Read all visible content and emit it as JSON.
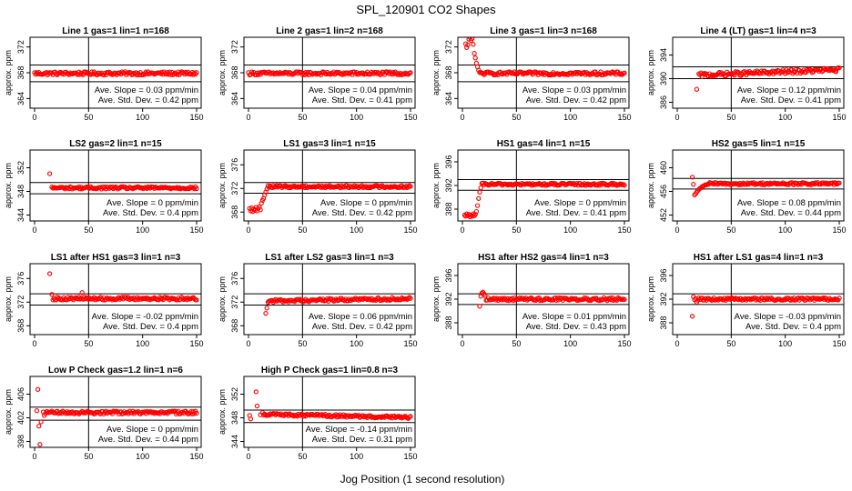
{
  "title": "SPL_120901  CO2 Shapes",
  "xlabel": "Jog Position (1 second resolution)",
  "colors": {
    "points": "#ff0000",
    "axes": "#000000",
    "background": "#ffffff"
  },
  "chart_data": [
    {
      "type": "scatter",
      "title": "Line 1 gas=1 lin=1 n=168",
      "ylabel": "approx. ppm",
      "xlim": [
        0,
        150
      ],
      "xticks": [
        0,
        50,
        100,
        150
      ],
      "ylim": [
        362.5,
        373.5
      ],
      "yticks": [
        364,
        368,
        372
      ],
      "hlines": [
        369.2,
        366.6
      ],
      "vline": 50,
      "slope_text": "Ave. Slope = 0.03 ppm/min",
      "std_text": "Ave. Std. Dev. = 0.42 ppm",
      "series": [
        {
          "x_start": 0,
          "x_end": 150,
          "level": 367.9,
          "noise": 0.25,
          "early": []
        }
      ]
    },
    {
      "type": "scatter",
      "title": "Line 2 gas=1 lin=2 n=168",
      "ylabel": "approx. ppm",
      "xlim": [
        0,
        150
      ],
      "xticks": [
        0,
        50,
        100,
        150
      ],
      "ylim": [
        362.5,
        373.5
      ],
      "yticks": [
        364,
        368,
        372
      ],
      "hlines": [
        369.2,
        366.6
      ],
      "vline": 50,
      "slope_text": "Ave. Slope = 0.04 ppm/min",
      "std_text": "Ave. Std. Dev. = 0.41 ppm",
      "series": [
        {
          "x_start": 0,
          "x_end": 150,
          "level": 367.9,
          "noise": 0.25,
          "early": []
        }
      ]
    },
    {
      "type": "scatter",
      "title": "Line 3 gas=1 lin=3 n=168",
      "ylabel": "approx. ppm",
      "xlim": [
        0,
        150
      ],
      "xticks": [
        0,
        50,
        100,
        150
      ],
      "ylim": [
        362.5,
        373.5
      ],
      "yticks": [
        364,
        368,
        372
      ],
      "hlines": [
        369.2,
        366.6
      ],
      "vline": 50,
      "slope_text": "Ave. Slope = 0.03 ppm/min",
      "std_text": "Ave. Std. Dev. = 0.42 ppm",
      "series": [
        {
          "x_start": 16,
          "x_end": 150,
          "level": 367.9,
          "noise": 0.25,
          "early": [
            [
              3,
              372.5
            ],
            [
              4,
              371.9
            ],
            [
              5,
              372.3
            ],
            [
              6,
              373.2
            ],
            [
              7,
              373.5
            ],
            [
              8,
              373.0
            ],
            [
              9,
              373.3
            ],
            [
              10,
              372.4
            ],
            [
              11,
              371.0
            ],
            [
              12,
              370.3
            ],
            [
              13,
              369.5
            ],
            [
              14,
              368.9
            ],
            [
              15,
              368.4
            ]
          ]
        }
      ]
    },
    {
      "type": "scatter",
      "title": "Line 4 (LT) gas=1 lin=4 n=3",
      "ylabel": "approx. ppm",
      "xlim": [
        0,
        150
      ],
      "xticks": [
        0,
        50,
        100,
        150
      ],
      "ylim": [
        385,
        397
      ],
      "yticks": [
        386,
        390,
        394
      ],
      "hlines": [
        392.0,
        390.0
      ],
      "vline": 50,
      "slope_text": "Ave. Slope = 0.12 ppm/min",
      "std_text": "Ave. Std. Dev. = 0.41 ppm",
      "series": [
        {
          "x_start": 20,
          "x_end": 150,
          "level": 390.6,
          "trend": 0.007,
          "noise": 0.35,
          "early": [
            [
              18,
              388.2
            ]
          ]
        }
      ]
    },
    {
      "type": "scatter",
      "title": "LS2 gas=2 lin=1 n=15",
      "ylabel": "approx. ppm",
      "xlim": [
        0,
        150
      ],
      "xticks": [
        0,
        50,
        100,
        150
      ],
      "ylim": [
        343,
        355
      ],
      "yticks": [
        344,
        348,
        352
      ],
      "hlines": [
        349.5,
        347.6
      ],
      "vline": 50,
      "slope_text": "Ave. Slope = 0 ppm/min",
      "std_text": "Ave. Std. Dev. = 0.4 ppm",
      "series": [
        {
          "x_start": 16,
          "x_end": 150,
          "level": 348.6,
          "noise": 0.2,
          "early": [
            [
              14,
              351.0
            ]
          ]
        }
      ]
    },
    {
      "type": "scatter",
      "title": "LS1 gas=3 lin=1 n=15",
      "ylabel": "approx. ppm",
      "xlim": [
        0,
        150
      ],
      "xticks": [
        0,
        50,
        100,
        150
      ],
      "ylim": [
        366.5,
        378.5
      ],
      "yticks": [
        368,
        372,
        376
      ],
      "hlines": [
        373.0,
        371.2
      ],
      "vline": 50,
      "slope_text": "Ave. Slope = 0 ppm/min",
      "std_text": "Ave. Std. Dev. = 0.42 ppm",
      "series": [
        {
          "x_start": 18,
          "x_end": 150,
          "level": 372.3,
          "noise": 0.2,
          "early": [
            [
              1,
              368.6
            ],
            [
              2,
              368.2
            ],
            [
              3,
              368.7
            ],
            [
              4,
              368.1
            ],
            [
              5,
              368.5
            ],
            [
              6,
              368.3
            ],
            [
              7,
              368.8
            ],
            [
              8,
              368.2
            ],
            [
              9,
              368.6
            ],
            [
              10,
              368.9
            ],
            [
              11,
              368.4
            ],
            [
              12,
              369.5
            ],
            [
              13,
              370.0
            ],
            [
              14,
              370.3
            ],
            [
              15,
              370.9
            ],
            [
              16,
              371.4
            ],
            [
              17,
              371.9
            ]
          ]
        }
      ]
    },
    {
      "type": "scatter",
      "title": "HS1 gas=4 lin=1 n=15",
      "ylabel": "approx. ppm",
      "xlim": [
        0,
        150
      ],
      "xticks": [
        0,
        50,
        100,
        150
      ],
      "ylim": [
        386,
        398
      ],
      "yticks": [
        388,
        392,
        396
      ],
      "hlines": [
        393.0,
        391.2
      ],
      "vline": 50,
      "slope_text": "Ave. Slope = 0 ppm/min",
      "std_text": "Ave. Std. Dev. = 0.41 ppm",
      "series": [
        {
          "x_start": 18,
          "x_end": 150,
          "level": 392.2,
          "noise": 0.2,
          "early": [
            [
              2,
              387.0
            ],
            [
              3,
              386.8
            ],
            [
              4,
              387.2
            ],
            [
              5,
              386.9
            ],
            [
              6,
              387.1
            ],
            [
              7,
              386.7
            ],
            [
              8,
              387.0
            ],
            [
              9,
              386.8
            ],
            [
              10,
              387.2
            ],
            [
              11,
              386.9
            ],
            [
              12,
              387.1
            ],
            [
              13,
              387.6
            ],
            [
              14,
              388.6
            ],
            [
              15,
              389.8
            ],
            [
              16,
              390.9
            ],
            [
              17,
              391.6
            ]
          ]
        }
      ]
    },
    {
      "type": "scatter",
      "title": "HS2 gas=5 lin=1 n=15",
      "ylabel": "approx. ppm",
      "xlim": [
        0,
        150
      ],
      "xticks": [
        0,
        50,
        100,
        150
      ],
      "ylim": [
        451,
        463
      ],
      "yticks": [
        452,
        456,
        460
      ],
      "hlines": [
        458.2,
        456.4
      ],
      "vline": 50,
      "slope_text": "Ave. Slope = 0.08 ppm/min",
      "std_text": "Ave. Std. Dev. = 0.44 ppm",
      "series": [
        {
          "x_start": 30,
          "x_end": 150,
          "level": 457.3,
          "noise": 0.2,
          "early": [
            [
              14,
              458.4
            ],
            [
              15,
              457.2
            ],
            [
              16,
              455.4
            ],
            [
              17,
              455.6
            ],
            [
              18,
              455.9
            ],
            [
              19,
              456.1
            ],
            [
              20,
              456.3
            ],
            [
              21,
              456.5
            ],
            [
              22,
              456.6
            ],
            [
              23,
              456.8
            ],
            [
              24,
              456.9
            ],
            [
              25,
              457.0
            ],
            [
              26,
              457.1
            ],
            [
              27,
              457.1
            ],
            [
              28,
              457.2
            ],
            [
              29,
              457.2
            ]
          ]
        }
      ]
    },
    {
      "type": "scatter",
      "title": "LS1 after HS1 gas=3 lin=1 n=3",
      "ylabel": "approx. ppm",
      "xlim": [
        0,
        150
      ],
      "xticks": [
        0,
        50,
        100,
        150
      ],
      "ylim": [
        366.5,
        378.5
      ],
      "yticks": [
        368,
        372,
        376
      ],
      "hlines": [
        373.4,
        371.5
      ],
      "vline": 50,
      "slope_text": "Ave. Slope = -0.02 ppm/min",
      "std_text": "Ave. Std. Dev. = 0.4 ppm",
      "series": [
        {
          "x_start": 17,
          "x_end": 150,
          "level": 372.6,
          "noise": 0.25,
          "early": [
            [
              14,
              376.8
            ],
            [
              16,
              373.3
            ],
            [
              44,
              373.6
            ]
          ]
        }
      ]
    },
    {
      "type": "scatter",
      "title": "LS1 after LS2 gas=3 lin=1 n=3",
      "ylabel": "approx. ppm",
      "xlim": [
        0,
        150
      ],
      "xticks": [
        0,
        50,
        100,
        150
      ],
      "ylim": [
        366.5,
        378.5
      ],
      "yticks": [
        368,
        372,
        376
      ],
      "hlines": [
        373.4,
        371.5
      ],
      "vline": 50,
      "slope_text": "Ave. Slope = 0.06 ppm/min",
      "std_text": "Ave. Std. Dev. = 0.42 ppm",
      "series": [
        {
          "x_start": 18,
          "x_end": 150,
          "level": 372.2,
          "trend": 0.003,
          "noise": 0.25,
          "early": [
            [
              16,
              370.1
            ],
            [
              17,
              371.0
            ]
          ]
        }
      ]
    },
    {
      "type": "scatter",
      "title": "HS1 after HS2 gas=4 lin=1 n=3",
      "ylabel": "approx. ppm",
      "xlim": [
        0,
        150
      ],
      "xticks": [
        0,
        50,
        100,
        150
      ],
      "ylim": [
        386,
        398
      ],
      "yticks": [
        388,
        392,
        396
      ],
      "hlines": [
        392.9,
        391.1
      ],
      "vline": 50,
      "slope_text": "Ave. Slope = 0.01 ppm/min",
      "std_text": "Ave. Std. Dev. = 0.43 ppm",
      "series": [
        {
          "x_start": 22,
          "x_end": 150,
          "level": 392.0,
          "noise": 0.25,
          "early": [
            [
              16,
              390.8
            ],
            [
              17,
              392.5
            ],
            [
              18,
              393.0
            ],
            [
              19,
              393.2
            ],
            [
              20,
              392.9
            ],
            [
              21,
              392.6
            ]
          ]
        }
      ]
    },
    {
      "type": "scatter",
      "title": "HS1 after LS1 gas=4 lin=1 n=3",
      "ylabel": "approx. ppm",
      "xlim": [
        0,
        150
      ],
      "xticks": [
        0,
        50,
        100,
        150
      ],
      "ylim": [
        386,
        398
      ],
      "yticks": [
        388,
        392,
        396
      ],
      "hlines": [
        392.9,
        391.1
      ],
      "vline": 50,
      "slope_text": "Ave. Slope = -0.03 ppm/min",
      "std_text": "Ave. Std. Dev. = 0.4 ppm",
      "series": [
        {
          "x_start": 19,
          "x_end": 150,
          "level": 392.0,
          "noise": 0.22,
          "early": [
            [
              14,
              389.1
            ],
            [
              15,
              392.4
            ],
            [
              16,
              391.9
            ],
            [
              17,
              392.1
            ],
            [
              18,
              391.5
            ]
          ]
        }
      ]
    },
    {
      "type": "scatter",
      "title": "Low P Check gas=1.2 lin=1 n=6",
      "ylabel": "approx. ppm",
      "xlim": [
        0,
        150
      ],
      "xticks": [
        0,
        50,
        100,
        150
      ],
      "ylim": [
        397,
        409
      ],
      "yticks": [
        398,
        402,
        406
      ],
      "hlines": [
        403.8,
        401.6
      ],
      "vline": 50,
      "slope_text": "Ave. Slope = 0 ppm/min",
      "std_text": "Ave. Std. Dev. = 0.44 ppm",
      "series": [
        {
          "x_start": 10,
          "x_end": 150,
          "level": 402.9,
          "noise": 0.25,
          "early": [
            [
              2,
              403.2
            ],
            [
              3,
              406.8
            ],
            [
              4,
              400.6
            ],
            [
              5,
              397.5
            ],
            [
              6,
              401.3
            ],
            [
              8,
              403.0
            ],
            [
              9,
              402.4
            ]
          ]
        }
      ]
    },
    {
      "type": "scatter",
      "title": "High P Check gas=1 lin=0.8 n=3",
      "ylabel": "approx. ppm",
      "xlim": [
        0,
        150
      ],
      "xticks": [
        0,
        50,
        100,
        150
      ],
      "ylim": [
        343,
        355
      ],
      "yticks": [
        344,
        348,
        352
      ],
      "hlines": [
        349.3,
        347.2
      ],
      "vline": 50,
      "slope_text": "Ave. Slope = -0.14 ppm/min",
      "std_text": "Ave. Std. Dev. = 0.31 ppm",
      "series": [
        {
          "x_start": 14,
          "x_end": 150,
          "level": 348.6,
          "trend": -0.004,
          "noise": 0.22,
          "early": [
            [
              1,
              348.4
            ],
            [
              2,
              347.8
            ],
            [
              7,
              352.4
            ],
            [
              8,
              350.0
            ],
            [
              11,
              348.5
            ],
            [
              13,
              348.9
            ]
          ]
        }
      ]
    }
  ]
}
